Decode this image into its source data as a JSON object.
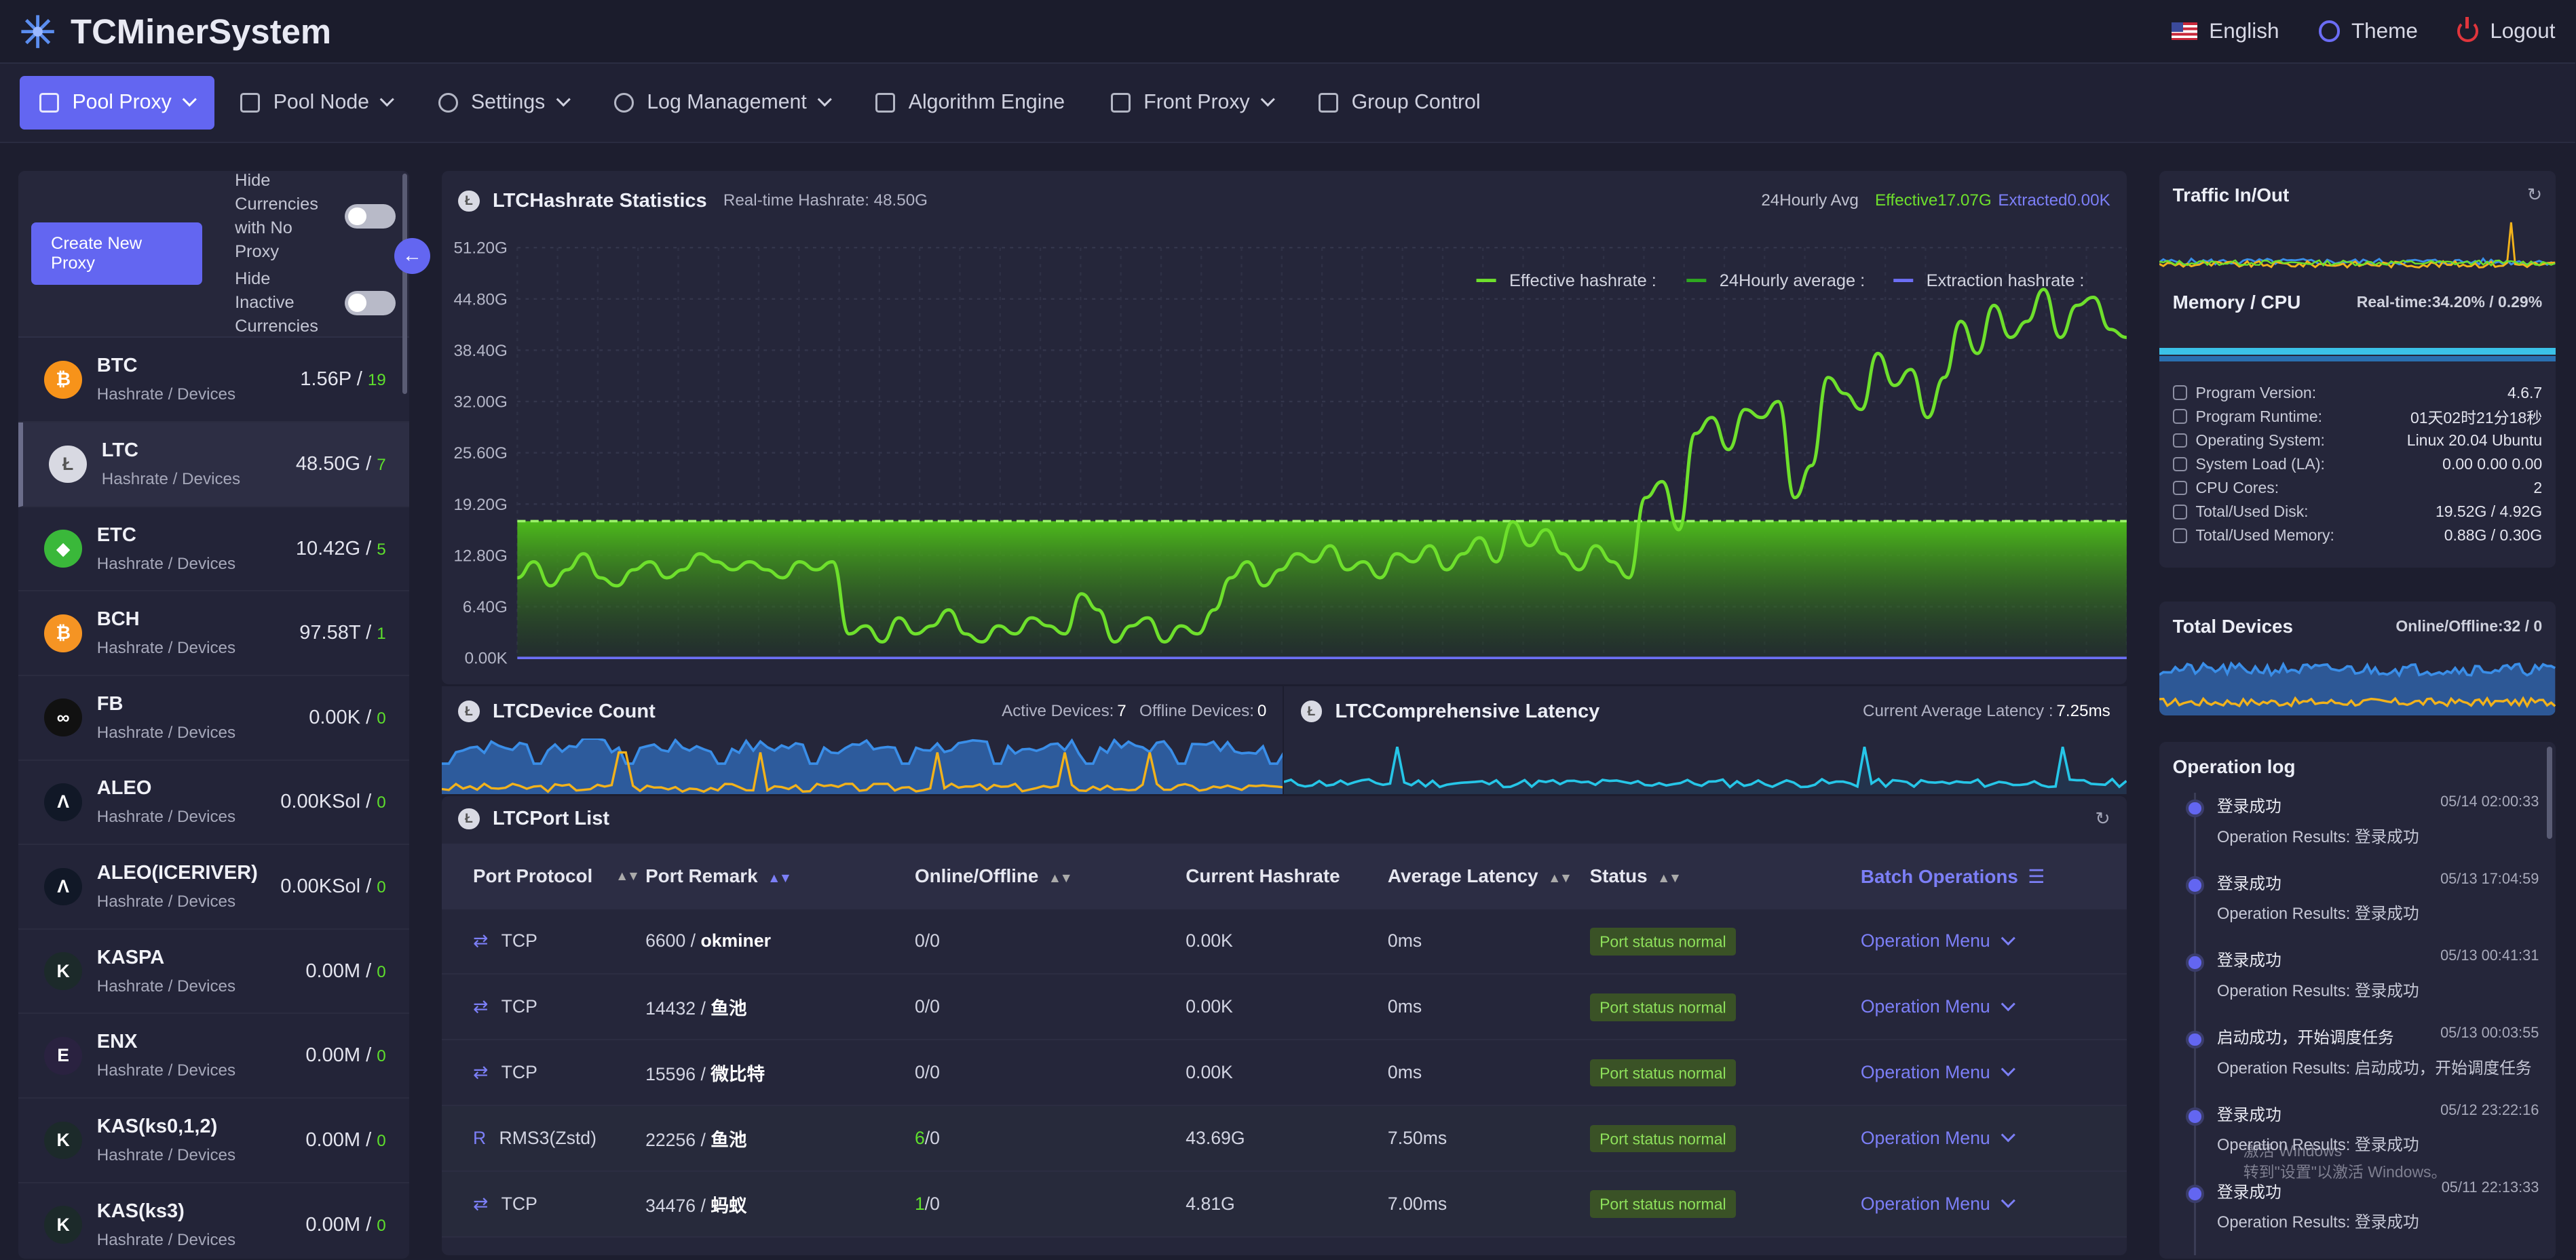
{
  "app": {
    "title": "TCMinerSystem"
  },
  "top_actions": {
    "language": "English",
    "theme": "Theme",
    "logout": "Logout"
  },
  "nav": [
    {
      "label": "Pool Proxy",
      "active": true,
      "dropdown": true,
      "icon": "hammer-icon"
    },
    {
      "label": "Pool Node",
      "dropdown": true,
      "icon": "network-icon"
    },
    {
      "label": "Settings",
      "dropdown": true,
      "icon": "gear-icon"
    },
    {
      "label": "Log Management",
      "dropdown": true,
      "icon": "info-icon"
    },
    {
      "label": "Algorithm Engine",
      "icon": "calendar-icon"
    },
    {
      "label": "Front Proxy",
      "dropdown": true,
      "icon": "branch-icon"
    },
    {
      "label": "Group Control",
      "icon": "hand-icon"
    }
  ],
  "sidebar": {
    "create_button": "Create New Proxy",
    "toggle1": "Hide Currencies with No Proxy",
    "toggle2": "Hide Inactive Currencies",
    "coins": [
      {
        "name": "BTC",
        "sub": "Hashrate / Devices",
        "hash": "1.56P / ",
        "count": "19",
        "color": "#f7931a",
        "glyph": "₿"
      },
      {
        "name": "LTC",
        "sub": "Hashrate / Devices",
        "hash": "48.50G / ",
        "count": "7",
        "color": "#d8d9e2",
        "glyph": "Ł",
        "active": true
      },
      {
        "name": "ETC",
        "sub": "Hashrate / Devices",
        "hash": "10.42G / ",
        "count": "5",
        "color": "#3ab83a",
        "glyph": "◆"
      },
      {
        "name": "BCH",
        "sub": "Hashrate / Devices",
        "hash": "97.58T / ",
        "count": "1",
        "color": "#f59423",
        "glyph": "₿"
      },
      {
        "name": "FB",
        "sub": "Hashrate / Devices",
        "hash": "0.00K / ",
        "count": "0",
        "color": "#111111",
        "glyph": "∞"
      },
      {
        "name": "ALEO",
        "sub": "Hashrate / Devices",
        "hash": "0.00KSol / ",
        "count": "0",
        "color": "#111827",
        "glyph": "Λ"
      },
      {
        "name": "ALEO(ICERIVER)",
        "sub": "Hashrate / Devices",
        "hash": "0.00KSol / ",
        "count": "0",
        "color": "#111827",
        "glyph": "Λ"
      },
      {
        "name": "KASPA",
        "sub": "Hashrate / Devices",
        "hash": "0.00M / ",
        "count": "0",
        "color": "#1c2a2a",
        "glyph": "K"
      },
      {
        "name": "ENX",
        "sub": "Hashrate / Devices",
        "hash": "0.00M / ",
        "count": "0",
        "color": "#2a2240",
        "glyph": "E"
      },
      {
        "name": "KAS(ks0,1,2)",
        "sub": "Hashrate / Devices",
        "hash": "0.00M / ",
        "count": "0",
        "color": "#1c2a2a",
        "glyph": "K"
      },
      {
        "name": "KAS(ks3)",
        "sub": "Hashrate / Devices",
        "hash": "0.00M / ",
        "count": "0",
        "color": "#1c2a2a",
        "glyph": "K"
      }
    ]
  },
  "hashrate": {
    "title": "LTCHashrate Statistics",
    "realtime": "Real-time Hashrate: 48.50G",
    "avg_select": "24Hourly Avg",
    "effective": "Effective17.07G",
    "extracted": "Extracted0.00K",
    "legend": [
      "Effective hashrate :",
      "24Hourly average :",
      "Extraction hashrate :"
    ],
    "yticks": [
      "51.20G",
      "44.80G",
      "38.40G",
      "32.00G",
      "25.60G",
      "19.20G",
      "12.80G",
      "6.40G",
      "0.00K"
    ]
  },
  "chart_data": {
    "type": "line",
    "ylabel": "",
    "ylim": [
      0,
      51.2
    ],
    "series": [
      {
        "name": "Effective hashrate",
        "color": "#6ee02c",
        "values": [
          10,
          12,
          9,
          11,
          13,
          10,
          9,
          11,
          12,
          10,
          11,
          13,
          12,
          11,
          12,
          11,
          10,
          12,
          11,
          12,
          3,
          4,
          2,
          5,
          3,
          4,
          6,
          3,
          2,
          4,
          3,
          5,
          4,
          3,
          8,
          6,
          2,
          4,
          5,
          2,
          4,
          3,
          6,
          10,
          12,
          9,
          11,
          13,
          12,
          14,
          11,
          12,
          10,
          13,
          12,
          14,
          11,
          13,
          15,
          12,
          17,
          14,
          16,
          13,
          11,
          14,
          12,
          10,
          20,
          22,
          16,
          28,
          30,
          26,
          31,
          30,
          32,
          20,
          24,
          35,
          33,
          31,
          38,
          34,
          36,
          30,
          35,
          42,
          38,
          44,
          40,
          42,
          46,
          40,
          44,
          45,
          41,
          40
        ]
      },
      {
        "name": "24Hourly average",
        "color": "#2ea81f",
        "values_const": 17.07
      },
      {
        "name": "Extraction hashrate",
        "color": "#6d6ff5",
        "values_const": 0
      }
    ]
  },
  "device_count": {
    "title": "LTCDevice Count",
    "active": "Active Devices: ",
    "active_val": "7",
    "offline": "Offline Devices: ",
    "offline_val": "0"
  },
  "latency": {
    "title": "LTCComprehensive Latency",
    "avg": "Current Average Latency : ",
    "avg_val": "7.25ms"
  },
  "ports": {
    "title": "LTCPort List",
    "headers": [
      "Port Protocol",
      "Port Remark",
      "Online/Offline",
      "Current Hashrate",
      "Average Latency",
      "Status",
      "Batch Operations"
    ],
    "rows": [
      {
        "protocol": "TCP",
        "port": "6600 / ",
        "remark": "okminer",
        "online": "0",
        "offline": "/0",
        "hash": "0.00K",
        "latency": "0ms",
        "status": "Port status normal",
        "menu": "Operation Menu"
      },
      {
        "protocol": "TCP",
        "port": "14432 / ",
        "remark": "鱼池",
        "online": "0",
        "offline": "/0",
        "hash": "0.00K",
        "latency": "0ms",
        "status": "Port status normal",
        "menu": "Operation Menu"
      },
      {
        "protocol": "TCP",
        "port": "15596 / ",
        "remark": "微比特",
        "online": "0",
        "offline": "/0",
        "hash": "0.00K",
        "latency": "0ms",
        "status": "Port status normal",
        "menu": "Operation Menu"
      },
      {
        "protocol": "RMS3(Zstd)",
        "port": "22256 / ",
        "remark": "鱼池",
        "online": "6",
        "offline": "/0",
        "hash": "43.69G",
        "latency": "7.50ms",
        "status": "Port status normal",
        "menu": "Operation Menu"
      },
      {
        "protocol": "TCP",
        "port": "34476 / ",
        "remark": "蚂蚁",
        "online": "1",
        "offline": "/0",
        "hash": "4.81G",
        "latency": "7.00ms",
        "status": "Port status normal",
        "menu": "Operation Menu"
      }
    ]
  },
  "traffic": {
    "title": "Traffic In/Out"
  },
  "memcpu": {
    "title": "Memory / CPU",
    "realtime": "Real-time:34.20% / 0.29%"
  },
  "sysinfo": [
    {
      "k": "Program Version:",
      "v": "4.6.7"
    },
    {
      "k": "Program Runtime:",
      "v": "01天02时21分18秒"
    },
    {
      "k": "Operating System:",
      "v": "Linux 20.04 Ubuntu"
    },
    {
      "k": "System Load (LA):",
      "v": "0.00 0.00 0.00"
    },
    {
      "k": "CPU Cores:",
      "v": "2"
    },
    {
      "k": "Total/Used Disk:",
      "v": "19.52G / 4.92G"
    },
    {
      "k": "Total/Used Memory:",
      "v": "0.88G / 0.30G"
    }
  ],
  "devices": {
    "title": "Total Devices",
    "online": "Online/Offline:32 / 0"
  },
  "oplog": {
    "title": "Operation log",
    "items": [
      {
        "title": "登录成功",
        "time": "05/14 02:00:33",
        "result": "Operation Results: 登录成功"
      },
      {
        "title": "登录成功",
        "time": "05/13 17:04:59",
        "result": "Operation Results: 登录成功"
      },
      {
        "title": "登录成功",
        "time": "05/13 00:41:31",
        "result": "Operation Results: 登录成功"
      },
      {
        "title": "启动成功，开始调度任务",
        "time": "05/13 00:03:55",
        "result": "Operation Results: 启动成功，开始调度任务"
      },
      {
        "title": "登录成功",
        "time": "05/12 23:22:16",
        "result": "Operation Results: 登录成功"
      },
      {
        "title": "登录成功",
        "time": "05/11 22:13:33",
        "result": "Operation Results: 登录成功"
      }
    ]
  },
  "watermark": {
    "line1": "激活 Windows",
    "line2": "转到\"设置\"以激活 Windows。"
  }
}
